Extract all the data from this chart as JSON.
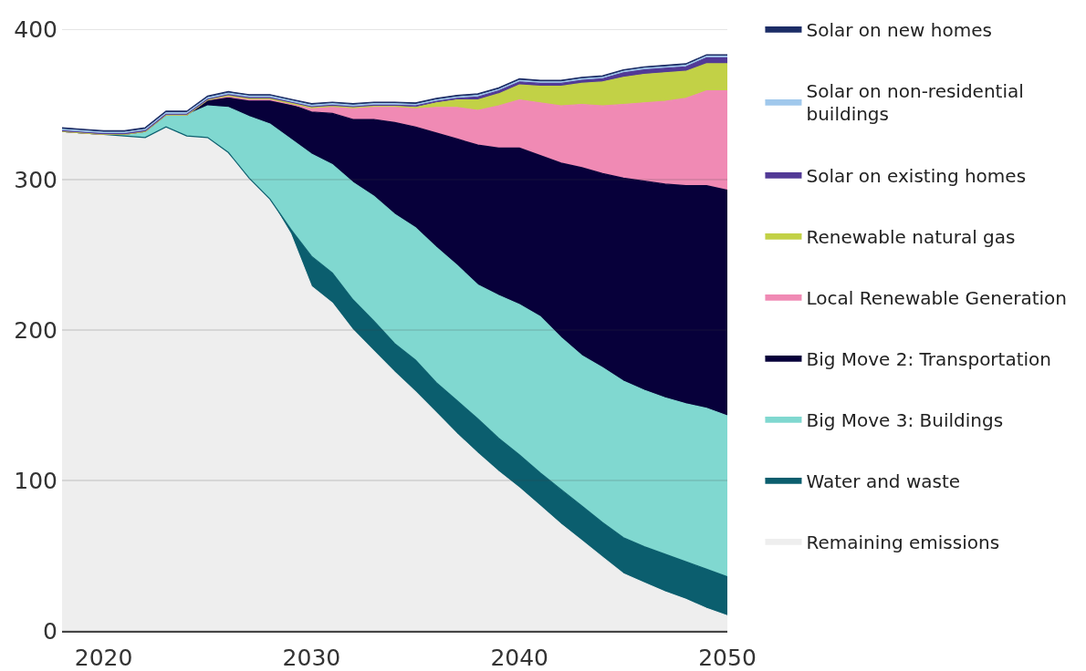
{
  "chart_data": {
    "type": "area",
    "stacked": true,
    "x": [
      2018,
      2019,
      2020,
      2021,
      2022,
      2023,
      2024,
      2025,
      2026,
      2027,
      2028,
      2029,
      2030,
      2031,
      2032,
      2033,
      2034,
      2035,
      2036,
      2037,
      2038,
      2039,
      2040,
      2041,
      2042,
      2043,
      2044,
      2045,
      2046,
      2047,
      2048,
      2049,
      2050
    ],
    "series": [
      {
        "name": "Remaining emissions",
        "color": "#eeeeee",
        "values": [
          332,
          331,
          330,
          329,
          328,
          335,
          329,
          328,
          318,
          301,
          287,
          264,
          229,
          218,
          200,
          186,
          172,
          159,
          145,
          131,
          118,
          106,
          95,
          83,
          71,
          60,
          49,
          38,
          32,
          26,
          21,
          15,
          10
        ]
      },
      {
        "name": "Water and waste",
        "color": "#0b5e6e",
        "values": [
          0,
          0,
          0,
          0,
          0,
          0,
          0,
          0,
          0,
          0,
          0,
          3,
          20,
          20,
          20,
          20,
          19,
          21,
          20,
          22,
          23,
          22,
          22,
          22,
          23,
          23,
          23,
          24,
          24,
          25,
          25,
          26,
          26
        ]
      },
      {
        "name": "Big Move 3: Buildings",
        "color": "#80d8d0",
        "values": [
          0,
          0,
          0,
          1,
          4,
          8,
          14,
          21,
          30,
          41,
          50,
          60,
          68,
          72,
          78,
          83,
          86,
          88,
          90,
          90,
          89,
          95,
          100,
          104,
          101,
          100,
          103,
          104,
          104,
          104,
          105,
          107,
          107
        ]
      },
      {
        "name": "Big Move 2: Transportation",
        "color": "#07003a",
        "values": [
          0,
          0,
          0,
          0,
          0,
          0,
          0,
          4,
          7,
          11,
          16,
          23,
          28,
          34,
          42,
          51,
          61,
          67,
          76,
          84,
          93,
          98,
          104,
          107,
          116,
          125,
          129,
          135,
          139,
          142,
          145,
          148,
          150
        ]
      },
      {
        "name": "Local Renewable Generation",
        "color": "#f08ab4",
        "values": [
          0,
          0,
          0,
          0,
          0,
          0,
          0,
          0,
          0,
          0,
          0,
          0,
          2,
          4,
          7,
          8,
          10,
          12,
          17,
          21,
          23,
          28,
          32,
          35,
          38,
          42,
          45,
          49,
          52,
          55,
          58,
          63,
          66
        ]
      },
      {
        "name": "Renewable natural gas",
        "color": "#c2d146",
        "values": [
          0,
          0,
          0,
          0,
          0,
          0,
          0,
          0,
          1,
          1,
          1,
          1,
          1,
          1,
          1,
          1,
          1,
          1,
          3,
          5,
          7,
          8,
          10,
          11,
          13,
          14,
          16,
          18,
          19,
          19,
          18,
          18,
          18
        ]
      },
      {
        "name": "Solar on existing homes",
        "color": "#523a96",
        "values": [
          0.5,
          0.5,
          0.5,
          0.5,
          0.5,
          0.5,
          0.5,
          0.5,
          0.5,
          0.5,
          0.5,
          0.5,
          0.5,
          0.5,
          0.5,
          0.5,
          0.5,
          1,
          1,
          1,
          2,
          2,
          2,
          2,
          2,
          2,
          2,
          3,
          3,
          3,
          3,
          4,
          4
        ]
      },
      {
        "name": "Solar on non-residential buildings",
        "color": "#a0c8ec",
        "values": [
          1,
          1,
          1,
          1,
          1,
          1,
          1,
          1,
          1,
          1,
          1,
          1,
          1,
          1,
          1,
          1,
          1,
          1,
          1,
          1,
          1,
          1,
          1,
          1,
          1,
          1,
          1,
          1,
          1,
          1,
          1,
          1,
          1
        ]
      },
      {
        "name": "Solar on new homes",
        "color": "#1c2d66",
        "values": [
          1,
          1,
          1,
          1,
          1,
          1,
          1,
          1,
          1,
          1,
          1,
          1,
          1,
          1,
          1,
          1,
          1,
          1,
          1,
          1,
          1,
          1,
          1,
          1,
          1,
          1,
          1,
          1,
          1,
          1,
          1,
          1,
          1
        ]
      }
    ],
    "xlim": [
      2018,
      2050
    ],
    "xticks": [
      2020,
      2030,
      2040,
      2050
    ],
    "ylim": [
      0,
      400
    ],
    "yticks": [
      0,
      100,
      200,
      300,
      400
    ],
    "grid": "y",
    "legend": "right"
  }
}
